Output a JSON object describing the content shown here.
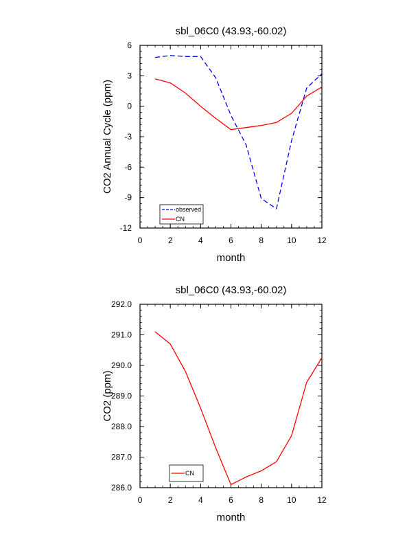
{
  "chart_data": [
    {
      "type": "line",
      "title": "sbl_06C0 (43.93,-60.02)",
      "xlabel": "month",
      "ylabel": "CO2 Annual Cycle (ppm)",
      "xlim": [
        0,
        12
      ],
      "ylim": [
        -12,
        6
      ],
      "xticks": [
        0,
        2,
        4,
        6,
        8,
        10,
        12
      ],
      "yticks": [
        -12,
        -9,
        -6,
        -3,
        0,
        3,
        6
      ],
      "ytick_labels": [
        "-12",
        "-9",
        "-6",
        "-3",
        "0",
        "3",
        "6"
      ],
      "grid": false,
      "legend_position": "bottom-left",
      "series": [
        {
          "name": "observed",
          "color": "#0000ff",
          "dash": "dashed",
          "x": [
            1,
            2,
            3,
            4,
            5,
            6,
            7,
            8,
            9,
            10,
            11,
            12
          ],
          "y": [
            4.8,
            5.0,
            4.9,
            4.9,
            2.8,
            -0.9,
            -3.8,
            -9.1,
            -10.1,
            -3.4,
            1.8,
            3.2
          ]
        },
        {
          "name": "CN",
          "color": "#ff0000",
          "dash": "solid",
          "x": [
            1,
            2,
            3,
            4,
            5,
            6,
            7,
            8,
            9,
            10,
            11,
            12
          ],
          "y": [
            2.7,
            2.3,
            1.3,
            0.0,
            -1.2,
            -2.3,
            -2.1,
            -1.9,
            -1.6,
            -0.7,
            1.0,
            1.9
          ]
        }
      ]
    },
    {
      "type": "line",
      "title": "sbl_06C0 (43.93,-60.02)",
      "xlabel": "month",
      "ylabel": "CO2 (ppm)",
      "xlim": [
        0,
        12
      ],
      "ylim": [
        286.0,
        292.0
      ],
      "xticks": [
        0,
        2,
        4,
        6,
        8,
        10,
        12
      ],
      "yticks": [
        286,
        287,
        288,
        289,
        290,
        291,
        292
      ],
      "ytick_labels": [
        "286.0",
        "287.0",
        "288.0",
        "289.0",
        "290.0",
        "291.0",
        "292.0"
      ],
      "grid": false,
      "legend_position": "bottom-left",
      "series": [
        {
          "name": "CN",
          "color": "#ff0000",
          "dash": "solid",
          "x": [
            1,
            2,
            3,
            4,
            5,
            6,
            7,
            8,
            9,
            10,
            11,
            12
          ],
          "y": [
            291.1,
            290.7,
            289.8,
            288.6,
            287.3,
            286.1,
            286.35,
            286.55,
            286.85,
            287.7,
            289.45,
            290.25
          ]
        }
      ]
    }
  ]
}
